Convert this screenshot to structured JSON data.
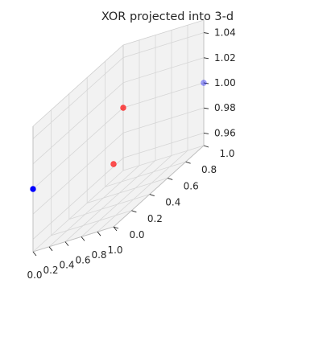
{
  "chart_data": {
    "type": "scatter",
    "projection": "3d",
    "title": "XOR projected into 3-d",
    "xlabel": "",
    "ylabel": "",
    "zlabel": "",
    "xlim": [
      0.0,
      1.0
    ],
    "ylim": [
      0.0,
      1.0
    ],
    "zlim": [
      0.95,
      1.05
    ],
    "grid": true,
    "x_ticks": [
      "0.0",
      "0.2",
      "0.4",
      "0.6",
      "0.8",
      "1.0"
    ],
    "y_ticks": [
      "0.0",
      "0.2",
      "0.4",
      "0.6",
      "0.8",
      "1.0"
    ],
    "z_ticks": [
      "0.96",
      "0.98",
      "1.00",
      "1.02",
      "1.04"
    ],
    "colors": {
      "class_0": "#0000ff",
      "class_1": "#ff0000",
      "pane": "#f2f2f2",
      "grid": "#d6d6d6",
      "text": "#262626"
    },
    "series": [
      {
        "class": "class_1",
        "color": "#ff0000",
        "points": [
          {
            "x": 0,
            "y": 1,
            "z": 1
          },
          {
            "x": 1,
            "y": 0,
            "z": 1
          }
        ]
      },
      {
        "class": "class_0",
        "color": "#0000ff",
        "points": [
          {
            "x": 0,
            "y": 0,
            "z": 1
          },
          {
            "x": 1,
            "y": 1,
            "z": 1
          }
        ]
      }
    ]
  }
}
